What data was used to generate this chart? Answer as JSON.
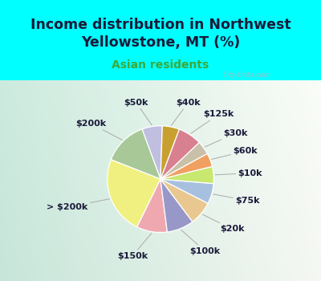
{
  "title": "Income distribution in Northwest\nYellowstone, MT (%)",
  "subtitle": "Asian residents",
  "bg_cyan": "#00FFFF",
  "watermark": "City-Data.com",
  "slices": [
    {
      "label": "$50k",
      "value": 6,
      "color": "#c0bfe0"
    },
    {
      "label": "$200k",
      "value": 13,
      "color": "#a8c898"
    },
    {
      "label": "> $200k",
      "value": 23,
      "color": "#f0f080"
    },
    {
      "label": "$150k",
      "value": 9,
      "color": "#f0a8b0"
    },
    {
      "label": "$100k",
      "value": 8,
      "color": "#9898c8"
    },
    {
      "label": "$20k",
      "value": 7,
      "color": "#e8c890"
    },
    {
      "label": "$75k",
      "value": 6,
      "color": "#a8c0e0"
    },
    {
      "label": "$10k",
      "value": 5,
      "color": "#c8e870"
    },
    {
      "label": "$60k",
      "value": 4,
      "color": "#f0a060"
    },
    {
      "label": "$30k",
      "value": 4,
      "color": "#c8c0a8"
    },
    {
      "label": "$125k",
      "value": 7,
      "color": "#d88090"
    },
    {
      "label": "$40k",
      "value": 5,
      "color": "#c8a030"
    }
  ],
  "label_fontsize": 8,
  "title_fontsize": 12.5,
  "subtitle_fontsize": 10,
  "title_color": "#1a1a3a",
  "subtitle_color": "#3aaa3a",
  "startangle": 88
}
